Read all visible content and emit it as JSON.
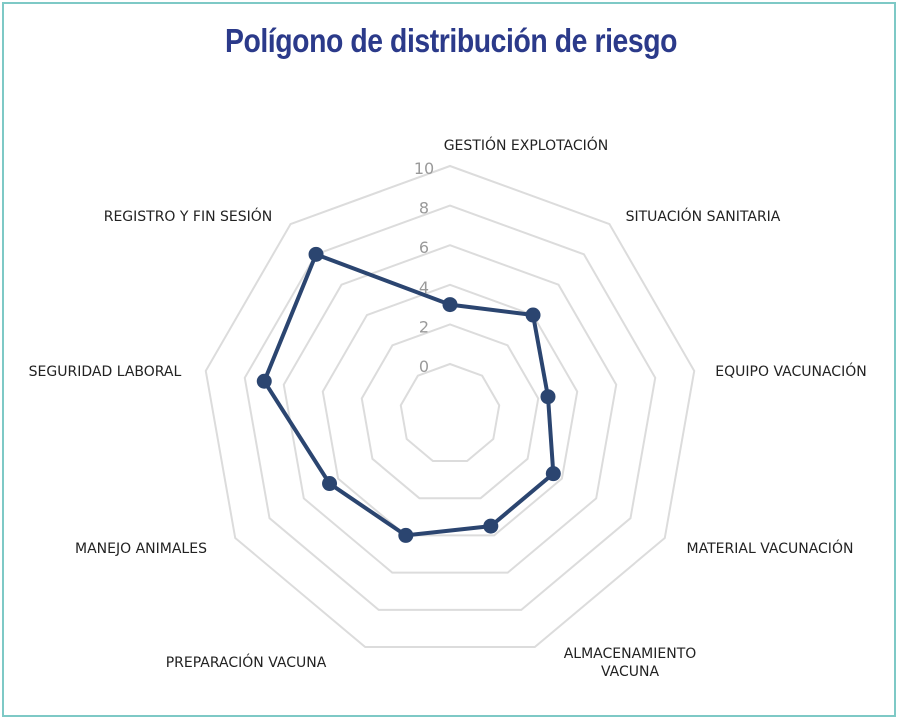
{
  "chart_data": {
    "type": "radar",
    "title": "Polígono de distribución de riesgo",
    "categories": [
      "GESTIÓN EXPLOTACIÓN",
      "SITUACIÓN SANITARIA",
      "EQUIPO VACUNACIÓN",
      "MATERIAL VACUNACIÓN",
      "ALMACENAMIENTO VACUNA",
      "PREPARACIÓN VACUNA",
      "MANEJO ANIMALES",
      "SEGURIDAD LABORAL",
      "REGISTRO Y FIN SESIÓN"
    ],
    "series": [
      {
        "values": [
          3,
          4,
          2.5,
          3.5,
          3.5,
          4,
          4.5,
          7,
          8
        ],
        "color": "#2b4570"
      }
    ],
    "rlim": [
      0,
      10
    ],
    "ticks": [
      "0",
      "2",
      "4",
      "6",
      "8",
      "10"
    ],
    "grid": true,
    "legend": false
  }
}
